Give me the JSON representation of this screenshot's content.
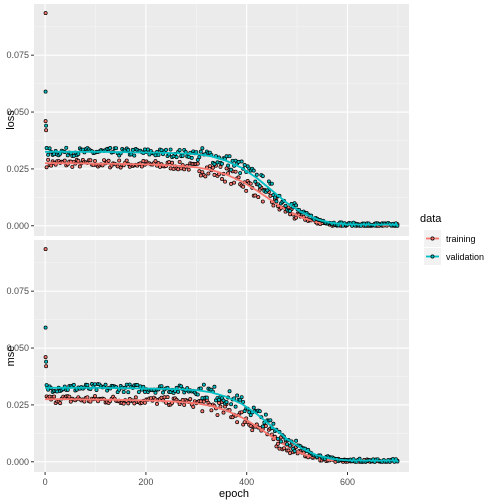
{
  "chart_data": {
    "type": "line",
    "xlabel": "epoch",
    "x_ticks": [
      0,
      200,
      400,
      600
    ],
    "xlim": [
      -22,
      722
    ],
    "legend": {
      "title": "data",
      "placement": "right",
      "entries": [
        {
          "label": "training",
          "color": "#F8766D"
        },
        {
          "label": "validation",
          "color": "#00BFC4"
        }
      ]
    },
    "facets": [
      {
        "ylabel": "loss",
        "ylim": [
          -0.0045,
          0.0975
        ],
        "y_ticks": [
          0.0,
          0.025,
          0.05,
          0.075
        ],
        "y_tick_labels": [
          "0.000",
          "0.025",
          "0.050",
          "0.075"
        ]
      },
      {
        "ylabel": "mse",
        "ylim": [
          -0.0045,
          0.0975
        ],
        "y_ticks": [
          0.0,
          0.025,
          0.05,
          0.075
        ],
        "y_tick_labels": [
          "0.000",
          "0.025",
          "0.050",
          "0.075"
        ]
      }
    ],
    "series": [
      {
        "name": "training",
        "color": "#F8766D",
        "outliers": [
          [
            1,
            0.0935
          ],
          [
            1,
            0.046
          ],
          [
            2,
            0.042
          ]
        ],
        "trend": [
          [
            0,
            0.0275
          ],
          [
            50,
            0.0275
          ],
          [
            100,
            0.0273
          ],
          [
            150,
            0.0272
          ],
          [
            200,
            0.027
          ],
          [
            250,
            0.0266
          ],
          [
            300,
            0.0257
          ],
          [
            330,
            0.0245
          ],
          [
            360,
            0.0225
          ],
          [
            390,
            0.0195
          ],
          [
            420,
            0.0155
          ],
          [
            450,
            0.011
          ],
          [
            480,
            0.0068
          ],
          [
            510,
            0.0035
          ],
          [
            540,
            0.0015
          ],
          [
            570,
            0.0006
          ],
          [
            600,
            0.0003
          ],
          [
            650,
            0.0002
          ],
          [
            700,
            0.0002
          ]
        ]
      },
      {
        "name": "validation",
        "color": "#00BFC4",
        "outliers": [
          [
            1,
            0.059
          ],
          [
            2,
            0.044
          ]
        ],
        "trend": [
          [
            0,
            0.0325
          ],
          [
            50,
            0.0325
          ],
          [
            100,
            0.0325
          ],
          [
            150,
            0.0324
          ],
          [
            200,
            0.0322
          ],
          [
            250,
            0.032
          ],
          [
            300,
            0.0315
          ],
          [
            330,
            0.0305
          ],
          [
            360,
            0.0285
          ],
          [
            390,
            0.0255
          ],
          [
            420,
            0.021
          ],
          [
            450,
            0.0155
          ],
          [
            480,
            0.01
          ],
          [
            510,
            0.0058
          ],
          [
            540,
            0.0028
          ],
          [
            570,
            0.0012
          ],
          [
            600,
            0.0006
          ],
          [
            650,
            0.0005
          ],
          [
            700,
            0.0005
          ]
        ]
      }
    ],
    "grid": true
  }
}
